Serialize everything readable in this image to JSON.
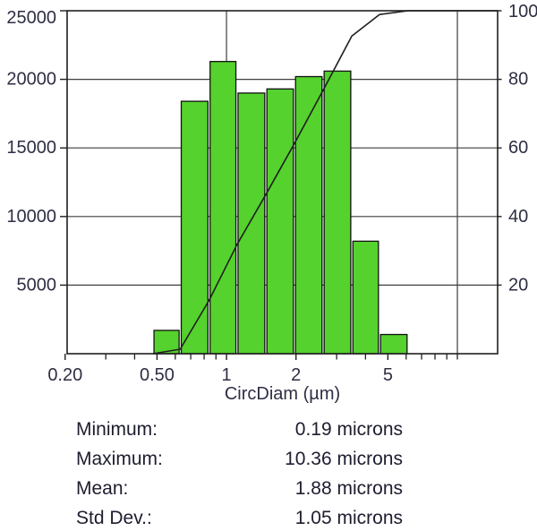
{
  "chart_data": {
    "type": "bar",
    "subtype": "log-histogram-with-cumulative-line",
    "title": "",
    "x_axis": {
      "label": "CircDiam (µm)",
      "scale": "log",
      "range": [
        0.204,
        14.94
      ],
      "major_ticks": [
        {
          "value": 0.2,
          "label": "0.20"
        },
        {
          "value": 0.5,
          "label": "0.50"
        },
        {
          "value": 1,
          "label": "1"
        },
        {
          "value": 2,
          "label": "2"
        },
        {
          "value": 5,
          "label": "5"
        }
      ],
      "minor_ticks": [
        0.3,
        0.4,
        0.6,
        0.7,
        0.8,
        0.9,
        3,
        4,
        6,
        7,
        8,
        9,
        10
      ],
      "grid_values": [
        1,
        10
      ]
    },
    "left_axis": {
      "label": "",
      "range": [
        0,
        25000
      ],
      "ticks": [
        {
          "value": 5000,
          "label": "5000"
        },
        {
          "value": 10000,
          "label": "10000"
        },
        {
          "value": 15000,
          "label": "15000"
        },
        {
          "value": 20000,
          "label": "20000"
        },
        {
          "value": 25000,
          "label": "25000"
        }
      ],
      "grid_values": [
        5000,
        10000,
        15000,
        20000
      ]
    },
    "right_axis": {
      "label": "",
      "range": [
        0,
        100
      ],
      "ticks": [
        {
          "value": 20,
          "label": "20"
        },
        {
          "value": 40,
          "label": "40"
        },
        {
          "value": 60,
          "label": "60"
        },
        {
          "value": 80,
          "label": "80"
        },
        {
          "value": 100,
          "label": "100"
        }
      ]
    },
    "bars": {
      "bin_edges": [
        0.48,
        0.63,
        0.84,
        1.11,
        1.48,
        1.97,
        2.62,
        3.49,
        4.6,
        6.12
      ],
      "counts": [
        1700,
        18400,
        21300,
        19000,
        19300,
        20200,
        20600,
        8200,
        1400
      ]
    },
    "cumulative_percent": [
      1.3,
      15.5,
      31.8,
      46.4,
      61.3,
      76.8,
      92.6,
      98.9,
      100
    ],
    "legend": null,
    "grid": "on",
    "colors": {
      "bar_fill": "#55d22d",
      "bar_stroke": "#111111",
      "line": "#1f1f1f",
      "frame": "#1f1f1f",
      "grid": "#3f3f3f",
      "labels": "#2e2e44"
    }
  },
  "stats": {
    "rows": [
      {
        "label": "Minimum:",
        "value": "0.19 microns"
      },
      {
        "label": "Maximum:",
        "value": "10.36 microns"
      },
      {
        "label": "Mean:",
        "value": "1.88 microns"
      },
      {
        "label": "Std Dev.:",
        "value": "1.05 microns"
      }
    ]
  }
}
